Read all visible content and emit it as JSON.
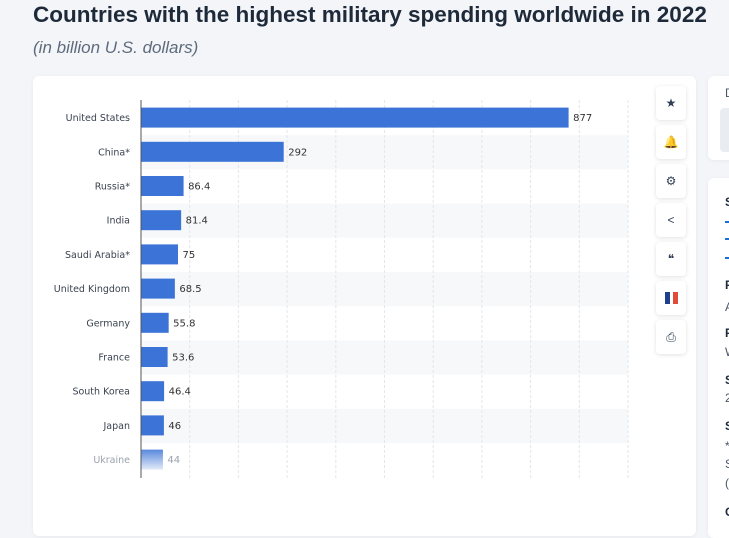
{
  "header": {
    "title": "Countries with the highest military spending worldwide in 2022",
    "subtitle": "(in billion U.S. dollars)"
  },
  "toolbar": [
    {
      "icon": "star-icon"
    },
    {
      "icon": "bell-icon"
    },
    {
      "icon": "gear-icon"
    },
    {
      "icon": "share-icon"
    },
    {
      "icon": "quote-icon"
    },
    {
      "icon": "french-flag-icon"
    },
    {
      "icon": "print-icon"
    }
  ],
  "side_panel": {
    "letters": [
      "D",
      "S",
      "F",
      "A",
      "F",
      "W",
      "S",
      "2",
      "S",
      "*",
      "S",
      "(",
      "C"
    ]
  },
  "colors": {
    "bar": "#3c73d6",
    "accent": "#1a6ed8"
  },
  "chart_data": {
    "type": "bar",
    "orientation": "horizontal",
    "categories": [
      "United States",
      "China*",
      "Russia*",
      "India",
      "Saudi Arabia*",
      "United Kingdom",
      "Germany",
      "France",
      "South Korea",
      "Japan",
      "Ukraine"
    ],
    "values": [
      877,
      292,
      86.4,
      81.4,
      75,
      68.5,
      55.8,
      53.6,
      46.4,
      46,
      44
    ],
    "value_labels": [
      "877",
      "292",
      "86.4",
      "81.4",
      "75",
      "68.5",
      "55.8",
      "53.6",
      "46.4",
      "46",
      "44"
    ],
    "xlim": [
      0,
      1000
    ],
    "grid": true,
    "data_labels": true
  }
}
